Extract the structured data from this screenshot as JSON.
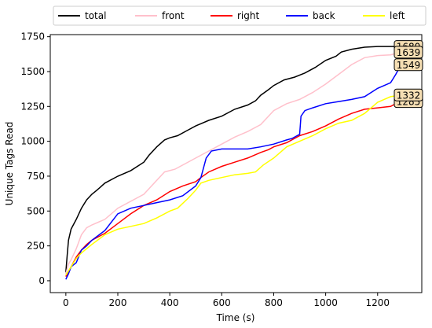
{
  "chart_data": {
    "type": "line",
    "xlabel": "Time (s)",
    "ylabel": "Unique Tags Read",
    "xlim": [
      -60,
      1370
    ],
    "ylim": [
      -85,
      1765
    ],
    "xticks": [
      0,
      200,
      400,
      600,
      800,
      1000,
      1200
    ],
    "yticks": [
      0,
      250,
      500,
      750,
      1000,
      1250,
      1500,
      1750
    ],
    "grid": false,
    "legend_position": "top",
    "series": [
      {
        "name": "total",
        "color": "#000000",
        "points": [
          [
            0,
            60
          ],
          [
            5,
            180
          ],
          [
            10,
            290
          ],
          [
            20,
            370
          ],
          [
            40,
            440
          ],
          [
            50,
            480
          ],
          [
            60,
            520
          ],
          [
            80,
            580
          ],
          [
            100,
            620
          ],
          [
            120,
            650
          ],
          [
            150,
            700
          ],
          [
            200,
            750
          ],
          [
            250,
            790
          ],
          [
            300,
            850
          ],
          [
            320,
            900
          ],
          [
            350,
            960
          ],
          [
            380,
            1010
          ],
          [
            400,
            1025
          ],
          [
            430,
            1040
          ],
          [
            470,
            1080
          ],
          [
            500,
            1110
          ],
          [
            550,
            1150
          ],
          [
            600,
            1180
          ],
          [
            650,
            1230
          ],
          [
            700,
            1260
          ],
          [
            730,
            1290
          ],
          [
            750,
            1330
          ],
          [
            780,
            1370
          ],
          [
            800,
            1400
          ],
          [
            840,
            1440
          ],
          [
            880,
            1460
          ],
          [
            920,
            1490
          ],
          [
            960,
            1530
          ],
          [
            1000,
            1580
          ],
          [
            1040,
            1610
          ],
          [
            1060,
            1640
          ],
          [
            1100,
            1660
          ],
          [
            1150,
            1675
          ],
          [
            1200,
            1680
          ],
          [
            1250,
            1680
          ],
          [
            1290,
            1680
          ]
        ],
        "end_label": "1680"
      },
      {
        "name": "front",
        "color": "#ffc0cb",
        "points": [
          [
            0,
            50
          ],
          [
            10,
            120
          ],
          [
            20,
            150
          ],
          [
            40,
            230
          ],
          [
            60,
            330
          ],
          [
            80,
            380
          ],
          [
            100,
            400
          ],
          [
            150,
            440
          ],
          [
            200,
            520
          ],
          [
            260,
            580
          ],
          [
            300,
            620
          ],
          [
            340,
            700
          ],
          [
            380,
            780
          ],
          [
            420,
            800
          ],
          [
            460,
            840
          ],
          [
            500,
            880
          ],
          [
            550,
            930
          ],
          [
            600,
            980
          ],
          [
            650,
            1030
          ],
          [
            700,
            1070
          ],
          [
            750,
            1120
          ],
          [
            800,
            1220
          ],
          [
            850,
            1270
          ],
          [
            900,
            1300
          ],
          [
            950,
            1350
          ],
          [
            1000,
            1410
          ],
          [
            1050,
            1480
          ],
          [
            1100,
            1550
          ],
          [
            1150,
            1600
          ],
          [
            1200,
            1615
          ],
          [
            1250,
            1620
          ],
          [
            1290,
            1639
          ]
        ],
        "end_label": "1639"
      },
      {
        "name": "right",
        "color": "#ff0000",
        "points": [
          [
            0,
            30
          ],
          [
            20,
            100
          ],
          [
            40,
            170
          ],
          [
            60,
            220
          ],
          [
            80,
            260
          ],
          [
            100,
            290
          ],
          [
            150,
            340
          ],
          [
            200,
            410
          ],
          [
            250,
            480
          ],
          [
            300,
            540
          ],
          [
            350,
            580
          ],
          [
            400,
            640
          ],
          [
            450,
            680
          ],
          [
            500,
            710
          ],
          [
            520,
            740
          ],
          [
            550,
            780
          ],
          [
            600,
            820
          ],
          [
            650,
            850
          ],
          [
            700,
            880
          ],
          [
            750,
            920
          ],
          [
            780,
            940
          ],
          [
            800,
            960
          ],
          [
            850,
            990
          ],
          [
            900,
            1040
          ],
          [
            950,
            1070
          ],
          [
            1000,
            1110
          ],
          [
            1050,
            1160
          ],
          [
            1100,
            1200
          ],
          [
            1150,
            1230
          ],
          [
            1200,
            1240
          ],
          [
            1250,
            1250
          ],
          [
            1270,
            1270
          ],
          [
            1290,
            1285
          ]
        ],
        "end_label": "1285"
      },
      {
        "name": "back",
        "color": "#0000ff",
        "points": [
          [
            0,
            10
          ],
          [
            10,
            50
          ],
          [
            20,
            100
          ],
          [
            40,
            130
          ],
          [
            60,
            220
          ],
          [
            80,
            250
          ],
          [
            100,
            290
          ],
          [
            150,
            360
          ],
          [
            200,
            480
          ],
          [
            250,
            520
          ],
          [
            300,
            540
          ],
          [
            350,
            560
          ],
          [
            400,
            580
          ],
          [
            450,
            610
          ],
          [
            500,
            680
          ],
          [
            520,
            740
          ],
          [
            540,
            880
          ],
          [
            560,
            930
          ],
          [
            600,
            945
          ],
          [
            700,
            945
          ],
          [
            750,
            960
          ],
          [
            800,
            980
          ],
          [
            850,
            1010
          ],
          [
            870,
            1020
          ],
          [
            900,
            1050
          ],
          [
            905,
            1180
          ],
          [
            920,
            1220
          ],
          [
            950,
            1240
          ],
          [
            1000,
            1270
          ],
          [
            1050,
            1285
          ],
          [
            1100,
            1300
          ],
          [
            1150,
            1320
          ],
          [
            1200,
            1380
          ],
          [
            1250,
            1420
          ],
          [
            1270,
            1480
          ],
          [
            1290,
            1549
          ]
        ],
        "end_label": "1549"
      },
      {
        "name": "left",
        "color": "#ffff00",
        "points": [
          [
            0,
            40
          ],
          [
            20,
            100
          ],
          [
            40,
            160
          ],
          [
            60,
            200
          ],
          [
            80,
            230
          ],
          [
            100,
            260
          ],
          [
            150,
            330
          ],
          [
            200,
            370
          ],
          [
            250,
            390
          ],
          [
            300,
            410
          ],
          [
            350,
            450
          ],
          [
            400,
            500
          ],
          [
            430,
            520
          ],
          [
            470,
            590
          ],
          [
            500,
            650
          ],
          [
            520,
            700
          ],
          [
            550,
            720
          ],
          [
            600,
            740
          ],
          [
            650,
            760
          ],
          [
            700,
            770
          ],
          [
            730,
            780
          ],
          [
            760,
            830
          ],
          [
            800,
            880
          ],
          [
            850,
            960
          ],
          [
            900,
            1000
          ],
          [
            950,
            1040
          ],
          [
            1000,
            1090
          ],
          [
            1050,
            1130
          ],
          [
            1100,
            1150
          ],
          [
            1150,
            1200
          ],
          [
            1200,
            1280
          ],
          [
            1250,
            1320
          ],
          [
            1290,
            1332
          ]
        ],
        "end_label": "1332"
      }
    ]
  }
}
